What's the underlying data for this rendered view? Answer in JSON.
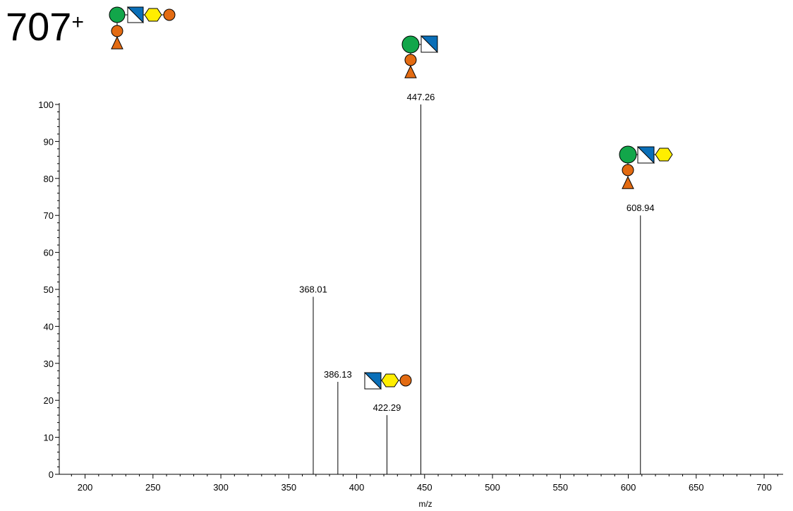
{
  "header": {
    "precursor_value": "707",
    "precursor_charge": "+"
  },
  "colors": {
    "hexnac": "#0a6fb8",
    "hexose_green": "#12a64a",
    "galactose_yellow": "#ffee00",
    "sialic_orange": "#e36b12",
    "fucose_orange": "#e36b12",
    "line": "#000000"
  },
  "glycan_icons": [
    "circle-green",
    "square-half-blue",
    "hexagon-yellow",
    "circle-orange",
    "triangle-orange"
  ],
  "chart_data": {
    "type": "bar",
    "xlabel": "m/z",
    "ylabel": "",
    "xlim": [
      181,
      714
    ],
    "ylim": [
      0,
      100
    ],
    "x_ticks": [
      200,
      250,
      300,
      350,
      400,
      450,
      500,
      550,
      600,
      650,
      700
    ],
    "y_ticks": [
      0,
      10,
      20,
      30,
      40,
      50,
      60,
      70,
      80,
      90,
      100
    ],
    "grid": false,
    "peaks": [
      {
        "mz": 368.01,
        "intensity": 48,
        "label": "368.01"
      },
      {
        "mz": 386.13,
        "intensity": 25,
        "label": "386.13"
      },
      {
        "mz": 422.29,
        "intensity": 16,
        "label": "422.29"
      },
      {
        "mz": 447.26,
        "intensity": 100,
        "label": "447.26"
      },
      {
        "mz": 608.94,
        "intensity": 70,
        "label": "608.94"
      }
    ]
  }
}
